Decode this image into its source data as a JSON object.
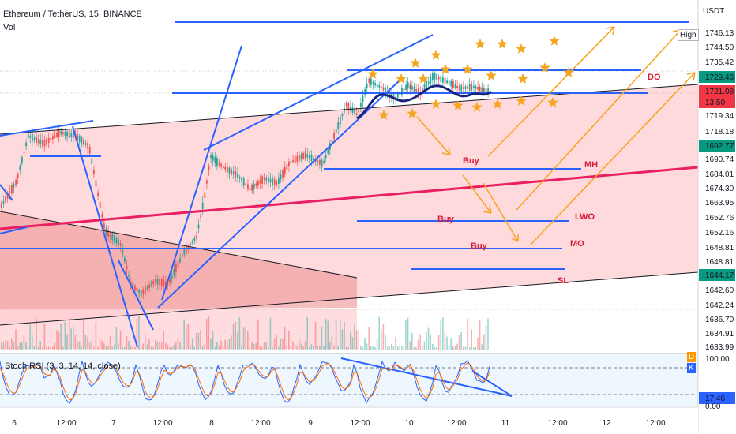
{
  "header": {
    "symbol_line": "Ethereum / TetherUS, 15, BINANCE",
    "volume_label": "Vol"
  },
  "stoch": {
    "label": "Stoch RSI (3, 3, 14, 14, close)",
    "axis_labels": [
      "100.00",
      "17.46",
      "0.00"
    ],
    "side_letters": [
      "D",
      "K"
    ]
  },
  "price_axis": {
    "currency": "USDT",
    "high_badge": "High",
    "labels": [
      "1746.13",
      "1744.50",
      "1735.42",
      "1729.46",
      "1721.08",
      "13:50",
      "1719.34",
      "1718.18",
      "1692.77",
      "1690.74",
      "1684.01",
      "1674.30",
      "1663.95",
      "1652.76",
      "1652.16",
      "1648.81",
      "1648.81",
      "1644.17",
      "1642.60",
      "1642.24",
      "1636.70",
      "1634.91",
      "1633.99"
    ],
    "highlighted": [
      "1729.46",
      "1721.08",
      "1692.77",
      "1644.17",
      "17.46"
    ]
  },
  "time_axis": {
    "labels": [
      "6",
      "12:00",
      "7",
      "12:00",
      "8",
      "12:00",
      "9",
      "12:00",
      "10",
      "12:00",
      "11",
      "12:00",
      "12",
      "12:00"
    ]
  },
  "annotations": {
    "buy_labels": [
      "Buy",
      "Buy",
      "Buy"
    ],
    "level_labels": [
      "DO",
      "MH",
      "LWO",
      "MO",
      "SL"
    ]
  },
  "colors": {
    "candle_up": "#26a69a",
    "candle_down": "#ef5350",
    "trendline": "#2962ff",
    "arrow": "#f7a21b",
    "star": "#f5a623",
    "zone_fill": "#ffcdd2",
    "label_red": "#d81b3a",
    "pink_line": "#e91e63",
    "price_highlight_green": "#089981",
    "price_highlight_red": "#f23645",
    "price_highlight_blue": "#2962ff"
  }
}
